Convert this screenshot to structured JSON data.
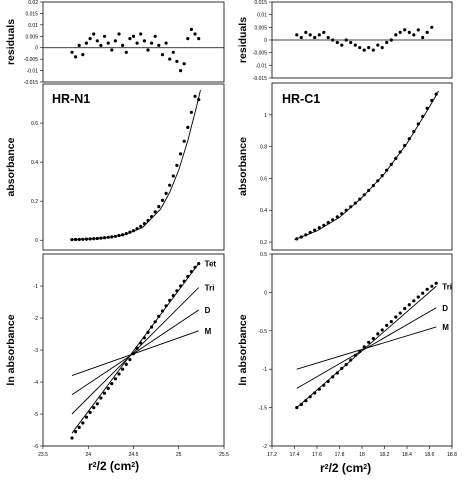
{
  "chart_data": [
    {
      "id": "left-residuals",
      "type": "scatter",
      "title": "",
      "ylabel": "residuals",
      "xlim": [
        23.5,
        25.5
      ],
      "ylim": [
        -0.015,
        0.02
      ],
      "yticks": [
        0.02,
        0.015,
        0.01,
        0.005,
        0,
        -0.005,
        -0.01,
        -0.015
      ],
      "ytick_labels": [
        "0.02",
        "0.015",
        "0.01",
        "0.005",
        "0",
        "-0.005",
        "-0.01",
        "-0.015"
      ],
      "zero_line": true,
      "series": [
        {
          "x": [
            23.82,
            23.86,
            23.9,
            23.94,
            23.98,
            24.02,
            24.06,
            24.1,
            24.14,
            24.18,
            24.22,
            24.26,
            24.3,
            24.34,
            24.38,
            24.42,
            24.46,
            24.5,
            24.54,
            24.58,
            24.62,
            24.66,
            24.7,
            24.74,
            24.78,
            24.82,
            24.86,
            24.9,
            24.94,
            24.98,
            25.02,
            25.06,
            25.1,
            25.14,
            25.18,
            25.22
          ],
          "y": [
            -0.002,
            -0.004,
            0.001,
            -0.003,
            0.002,
            0.004,
            0.006,
            0.003,
            0.001,
            0.005,
            0.002,
            -0.001,
            0.003,
            0.006,
            0.001,
            -0.002,
            0.004,
            0.005,
            0.002,
            0.006,
            0.003,
            -0.001,
            0.002,
            0.005,
            0.001,
            -0.003,
            0.002,
            -0.005,
            -0.002,
            -0.006,
            -0.01,
            -0.007,
            0.004,
            0.008,
            0.006,
            0.004
          ]
        }
      ]
    },
    {
      "id": "right-residuals",
      "type": "scatter",
      "title": "",
      "ylabel": "residuals",
      "xlim": [
        17.2,
        18.8
      ],
      "ylim": [
        -0.015,
        0.015
      ],
      "yticks": [
        0.015,
        0.01,
        0.005,
        0,
        -0.005,
        -0.01,
        -0.015
      ],
      "ytick_labels": [
        "0.015",
        "0.01",
        "0.005",
        "0",
        "-0.005",
        "-0.01",
        "-0.015"
      ],
      "zero_line": true,
      "series": [
        {
          "x": [
            17.42,
            17.46,
            17.5,
            17.54,
            17.58,
            17.62,
            17.66,
            17.7,
            17.74,
            17.78,
            17.82,
            17.86,
            17.9,
            17.94,
            17.98,
            18.02,
            18.06,
            18.1,
            18.14,
            18.18,
            18.22,
            18.26,
            18.3,
            18.34,
            18.38,
            18.42,
            18.46,
            18.5,
            18.54,
            18.58,
            18.62
          ],
          "y": [
            0.002,
            0.001,
            0.003,
            0.002,
            0.001,
            0.002,
            0.003,
            0.001,
            0,
            -0.001,
            -0.002,
            0,
            -0.001,
            -0.002,
            -0.003,
            -0.004,
            -0.003,
            -0.004,
            -0.002,
            -0.003,
            -0.001,
            0,
            0.002,
            0.003,
            0.004,
            0.003,
            0.002,
            0.004,
            0.001,
            0.003,
            0.005
          ]
        }
      ]
    },
    {
      "id": "left-absorbance",
      "type": "scatter",
      "title": "HR-N1",
      "ylabel": "absorbance",
      "xlim": [
        23.5,
        25.5
      ],
      "ylim": [
        -0.05,
        0.8
      ],
      "yticks": [
        0,
        0.2,
        0.4,
        0.6
      ],
      "ytick_labels": [
        "0",
        "0.2",
        "0.4",
        "0.6"
      ],
      "series": [
        {
          "x": [
            23.82,
            23.86,
            23.9,
            23.94,
            23.98,
            24.02,
            24.06,
            24.1,
            24.14,
            24.18,
            24.22,
            24.26,
            24.3,
            24.34,
            24.38,
            24.42,
            24.46,
            24.5,
            24.54,
            24.58,
            24.62,
            24.66,
            24.7,
            24.74,
            24.78,
            24.82,
            24.86,
            24.9,
            24.94,
            24.98,
            25.02,
            25.06,
            25.1,
            25.14,
            25.18,
            25.22
          ],
          "y": [
            0.003,
            0.004,
            0.004,
            0.005,
            0.006,
            0.007,
            0.008,
            0.009,
            0.011,
            0.013,
            0.015,
            0.017,
            0.02,
            0.024,
            0.028,
            0.034,
            0.041,
            0.049,
            0.059,
            0.071,
            0.085,
            0.101,
            0.121,
            0.145,
            0.172,
            0.204,
            0.24,
            0.282,
            0.329,
            0.383,
            0.442,
            0.507,
            0.578,
            0.655,
            0.737,
            0.72
          ]
        }
      ],
      "fit_curve": {
        "x": [
          23.8,
          24.0,
          24.2,
          24.4,
          24.6,
          24.8,
          24.9,
          25.0,
          25.1,
          25.15,
          25.2,
          25.24
        ],
        "y": [
          0.003,
          0.006,
          0.013,
          0.028,
          0.065,
          0.16,
          0.245,
          0.36,
          0.51,
          0.6,
          0.69,
          0.77
        ]
      }
    },
    {
      "id": "right-absorbance",
      "type": "scatter",
      "title": "HR-C1",
      "ylabel": "absorbance",
      "xlim": [
        17.2,
        18.8
      ],
      "ylim": [
        0.15,
        1.2
      ],
      "yticks": [
        0.2,
        0.4,
        0.6,
        0.8,
        1
      ],
      "ytick_labels": [
        "0.2",
        "0.4",
        "0.6",
        "0.8",
        "1"
      ],
      "series": [
        {
          "x": [
            17.42,
            17.46,
            17.5,
            17.54,
            17.58,
            17.62,
            17.66,
            17.7,
            17.74,
            17.78,
            17.82,
            17.86,
            17.9,
            17.94,
            17.98,
            18.02,
            18.06,
            18.1,
            18.14,
            18.18,
            18.22,
            18.26,
            18.3,
            18.34,
            18.38,
            18.42,
            18.46,
            18.5,
            18.54,
            18.58,
            18.62,
            18.66
          ],
          "y": [
            0.22,
            0.232,
            0.245,
            0.26,
            0.275,
            0.29,
            0.305,
            0.322,
            0.34,
            0.358,
            0.378,
            0.4,
            0.422,
            0.445,
            0.47,
            0.497,
            0.525,
            0.555,
            0.585,
            0.618,
            0.652,
            0.688,
            0.726,
            0.766,
            0.807,
            0.85,
            0.895,
            0.942,
            0.99,
            1.04,
            1.09,
            1.13
          ]
        }
      ],
      "fit_curve": {
        "x": [
          17.4,
          17.6,
          17.8,
          18.0,
          18.2,
          18.4,
          18.6,
          18.68
        ],
        "y": [
          0.215,
          0.27,
          0.355,
          0.48,
          0.63,
          0.82,
          1.05,
          1.15
        ]
      }
    },
    {
      "id": "left-ln",
      "type": "scatter",
      "title": "",
      "ylabel": "ln absorbance",
      "xlabel": "r²/2  (cm²)",
      "xlim": [
        23.5,
        25.5
      ],
      "ylim": [
        -6,
        0
      ],
      "xticks": [
        23.5,
        24,
        24.5,
        25,
        25.5
      ],
      "xtick_labels": [
        "23.5",
        "24",
        "24.5",
        "25",
        "25.5"
      ],
      "yticks": [
        -1,
        -2,
        -3,
        -4,
        -5,
        -6
      ],
      "ytick_labels": [
        "-1",
        "-2",
        "-3",
        "-4",
        "-5",
        "-6"
      ],
      "series": [
        {
          "x": [
            23.82,
            23.86,
            23.9,
            23.94,
            23.98,
            24.02,
            24.06,
            24.1,
            24.14,
            24.18,
            24.22,
            24.26,
            24.3,
            24.34,
            24.38,
            24.42,
            24.46,
            24.5,
            24.54,
            24.58,
            24.62,
            24.66,
            24.7,
            24.74,
            24.78,
            24.82,
            24.86,
            24.9,
            24.94,
            24.98,
            25.02,
            25.06,
            25.1,
            25.14,
            25.18,
            25.22
          ],
          "y": [
            -5.75,
            -5.55,
            -5.42,
            -5.28,
            -5.1,
            -4.95,
            -4.8,
            -4.68,
            -4.5,
            -4.35,
            -4.2,
            -4.05,
            -3.9,
            -3.75,
            -3.6,
            -3.45,
            -3.3,
            -3.12,
            -2.95,
            -2.78,
            -2.62,
            -2.45,
            -2.28,
            -2.12,
            -1.95,
            -1.78,
            -1.62,
            -1.45,
            -1.3,
            -1.15,
            -1.0,
            -0.85,
            -0.7,
            -0.55,
            -0.42,
            -0.3
          ]
        }
      ],
      "model_lines": [
        {
          "name": "Tet",
          "x": [
            23.82,
            25.22
          ],
          "y": [
            -5.6,
            -0.3
          ]
        },
        {
          "name": "Tri",
          "x": [
            23.82,
            25.22
          ],
          "y": [
            -5.0,
            -1.05
          ]
        },
        {
          "name": "D",
          "x": [
            23.82,
            25.22
          ],
          "y": [
            -4.4,
            -1.75
          ]
        },
        {
          "name": "M",
          "x": [
            23.82,
            25.22
          ],
          "y": [
            -3.8,
            -2.4
          ]
        }
      ]
    },
    {
      "id": "right-ln",
      "type": "scatter",
      "title": "",
      "ylabel": "ln absorbance",
      "xlabel": "r²/2  (cm²)",
      "xlim": [
        17.2,
        18.8
      ],
      "ylim": [
        -2,
        0.5
      ],
      "xticks": [
        17.2,
        17.4,
        17.6,
        17.8,
        18,
        18.2,
        18.4,
        18.6,
        18.8
      ],
      "xtick_labels": [
        "17.2",
        "17.4",
        "17.6",
        "17.8",
        "18",
        "18.2",
        "18.4",
        "18.6",
        "18.8"
      ],
      "yticks": [
        0.5,
        0,
        -0.5,
        -1,
        -1.5,
        -2
      ],
      "ytick_labels": [
        "0.5",
        "0",
        "-0.5",
        "-1",
        "-1.5",
        "-2"
      ],
      "series": [
        {
          "x": [
            17.42,
            17.46,
            17.5,
            17.54,
            17.58,
            17.62,
            17.66,
            17.7,
            17.74,
            17.78,
            17.82,
            17.86,
            17.9,
            17.94,
            17.98,
            18.02,
            18.06,
            18.1,
            18.14,
            18.18,
            18.22,
            18.26,
            18.3,
            18.34,
            18.38,
            18.42,
            18.46,
            18.5,
            18.54,
            18.58,
            18.62,
            18.66
          ],
          "y": [
            -1.5,
            -1.46,
            -1.41,
            -1.36,
            -1.31,
            -1.26,
            -1.21,
            -1.16,
            -1.1,
            -1.05,
            -0.99,
            -0.94,
            -0.88,
            -0.82,
            -0.77,
            -0.71,
            -0.65,
            -0.6,
            -0.54,
            -0.49,
            -0.43,
            -0.38,
            -0.32,
            -0.27,
            -0.21,
            -0.16,
            -0.11,
            -0.06,
            -0.01,
            0.04,
            0.08,
            0.12
          ]
        }
      ],
      "model_lines": [
        {
          "name": "Tri",
          "x": [
            17.42,
            18.66
          ],
          "y": [
            -1.5,
            0.08
          ]
        },
        {
          "name": "D",
          "x": [
            17.42,
            18.66
          ],
          "y": [
            -1.25,
            -0.2
          ]
        },
        {
          "name": "M",
          "x": [
            17.42,
            18.66
          ],
          "y": [
            -1.0,
            -0.45
          ]
        }
      ]
    }
  ]
}
